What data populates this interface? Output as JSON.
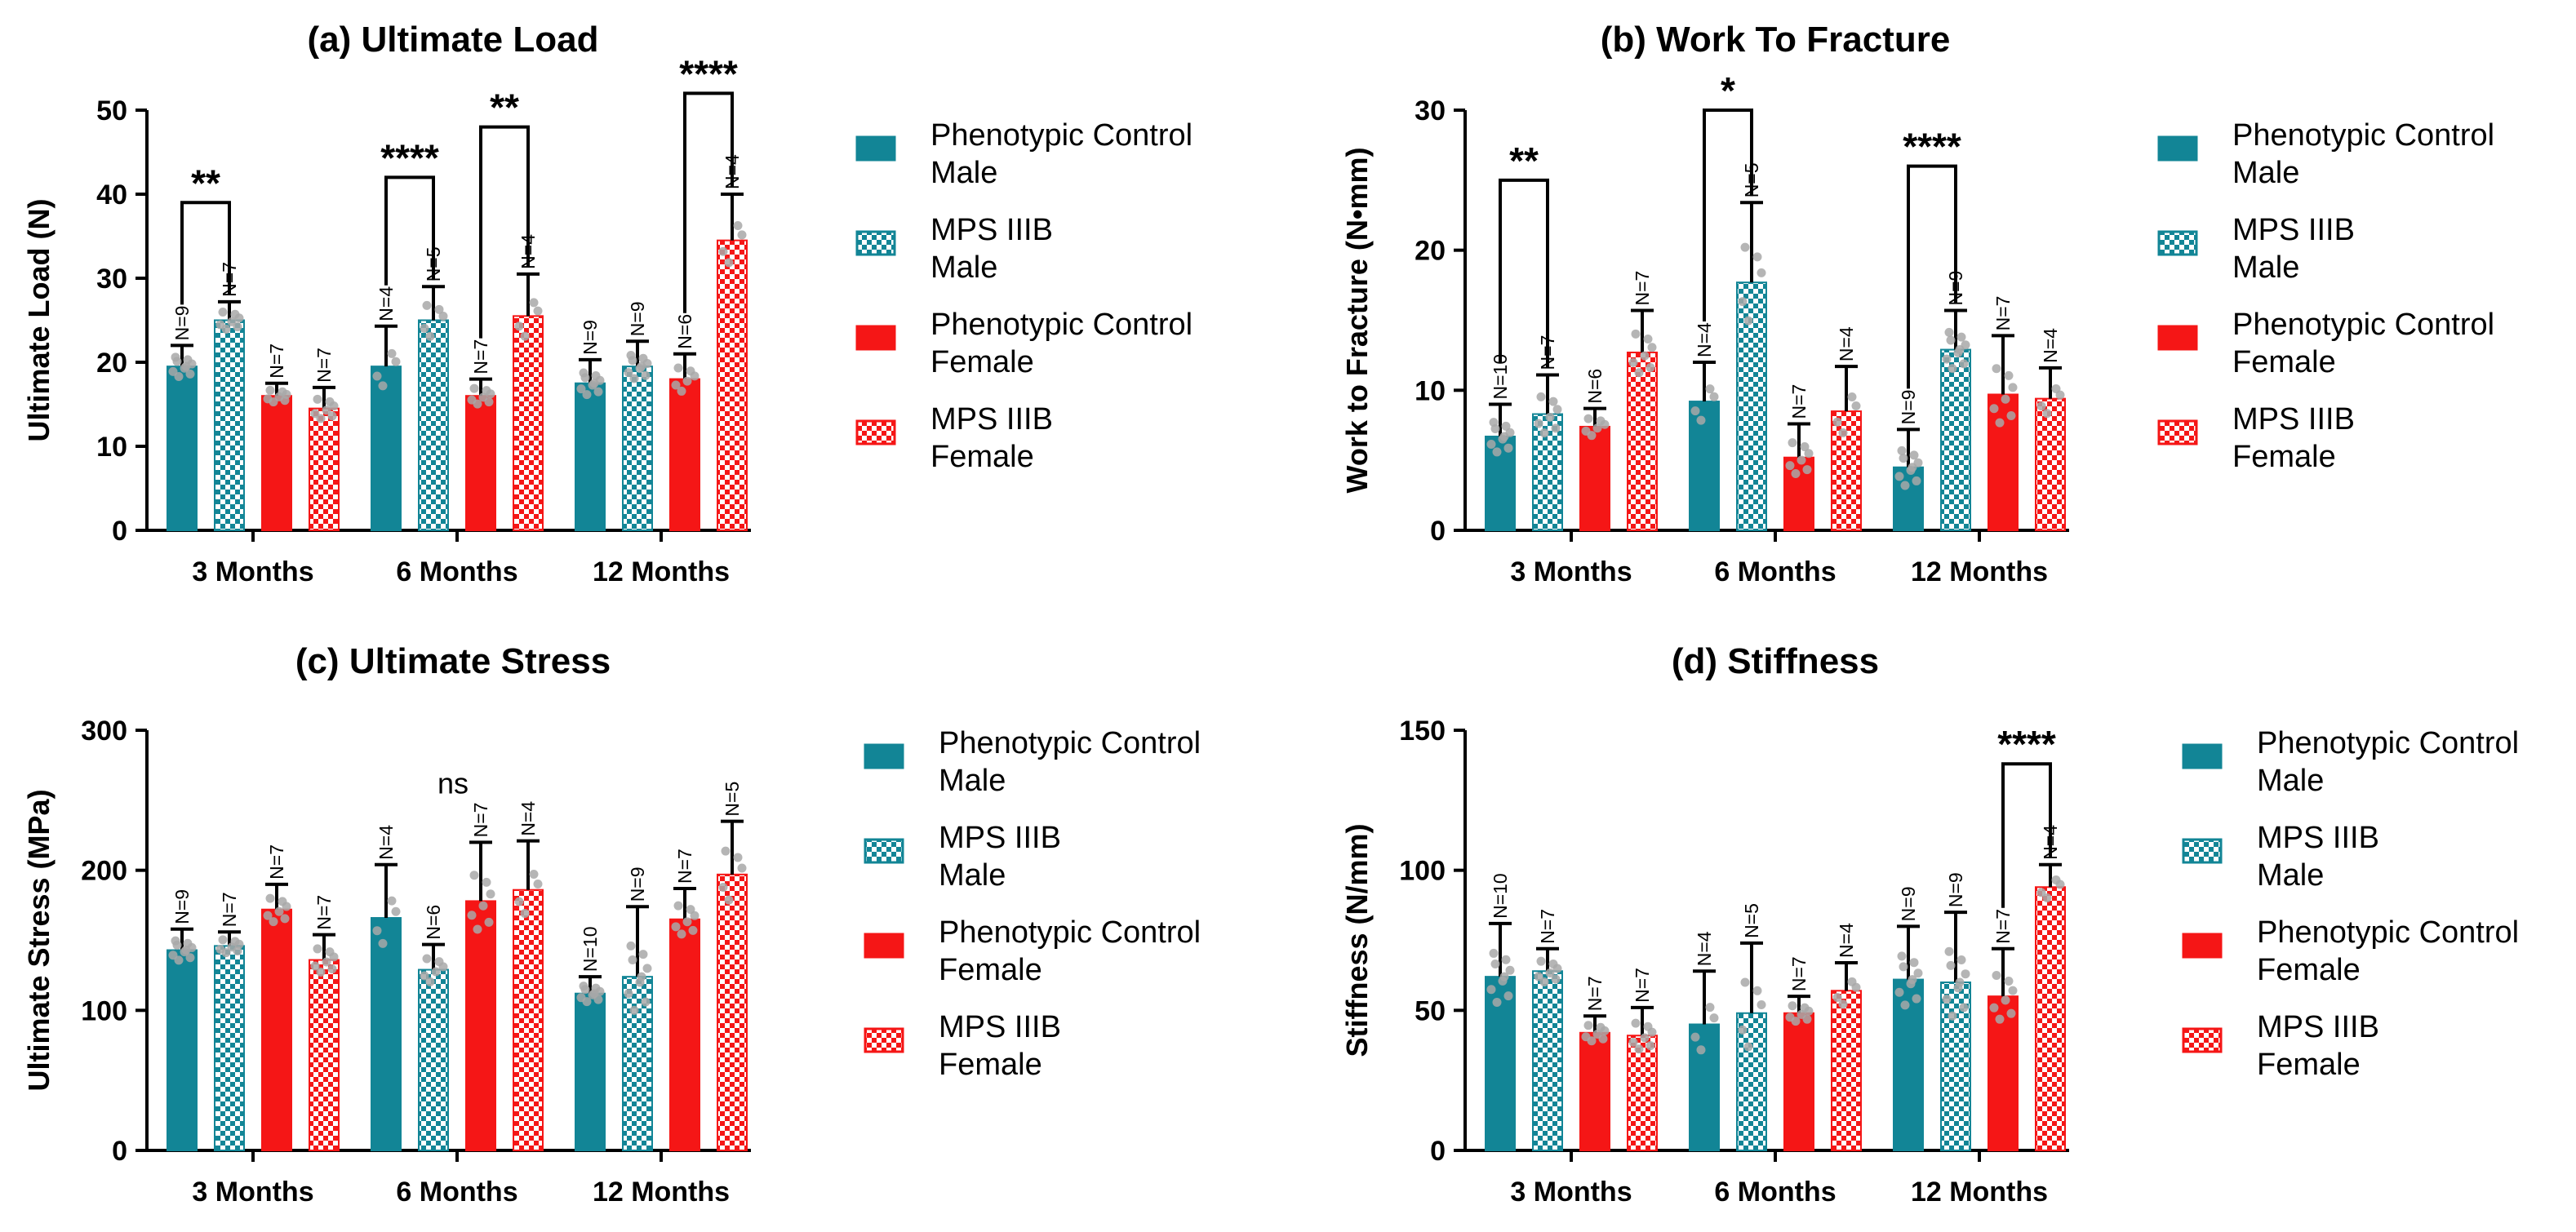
{
  "colors": {
    "teal": "#128596",
    "red": "#f51616",
    "dots": "#a8a8a8"
  },
  "legend": [
    {
      "lines": [
        "Phenotypic Control",
        "Male"
      ],
      "color": "#128596",
      "pattern": "solid"
    },
    {
      "lines": [
        "MPS IIIB",
        "Male"
      ],
      "color": "#128596",
      "pattern": "check"
    },
    {
      "lines": [
        "Phenotypic Control",
        "Female"
      ],
      "color": "#f51616",
      "pattern": "solid"
    },
    {
      "lines": [
        "MPS IIIB",
        "Female"
      ],
      "color": "#f51616",
      "pattern": "check"
    }
  ],
  "chart_data": [
    {
      "type": "bar",
      "title": "(a) Ultimate Load",
      "ylabel": "Ultimate  Load (N)",
      "ylim": [
        0,
        50
      ],
      "yticks": [
        0,
        10,
        20,
        30,
        40,
        50
      ],
      "categories": [
        "3 Months",
        "6 Months",
        "12 Months"
      ],
      "series": [
        {
          "name": "Phenotypic Control Male",
          "values": [
            19.5,
            19.5,
            17.5
          ],
          "errors": [
            2.5,
            4.8,
            2.8
          ],
          "n": [
            "N=9",
            "N=4",
            "N=9"
          ]
        },
        {
          "name": "MPS IIIB Male",
          "values": [
            25,
            25,
            19.5
          ],
          "errors": [
            2.2,
            4,
            3
          ],
          "n": [
            "N=7",
            "N=5",
            "N=9"
          ]
        },
        {
          "name": "Phenotypic Control Female",
          "values": [
            16,
            16,
            18
          ],
          "errors": [
            1.5,
            2,
            3
          ],
          "n": [
            "N=7",
            "N=7",
            "N=6"
          ]
        },
        {
          "name": "MPS IIIB Female",
          "values": [
            14.5,
            25.5,
            34.5
          ],
          "errors": [
            2.5,
            5,
            5.5
          ],
          "n": [
            "N=7",
            "N=4",
            "N=4"
          ]
        }
      ],
      "significance": [
        {
          "group": 0,
          "from": 0,
          "to": 1,
          "label": "**",
          "y": 39
        },
        {
          "group": 1,
          "from": 0,
          "to": 1,
          "label": "****",
          "y": 42
        },
        {
          "group": 1,
          "from": 2,
          "to": 3,
          "label": "**",
          "y": 48
        },
        {
          "group": 2,
          "from": 2,
          "to": 3,
          "label": "****",
          "y": 52
        }
      ],
      "annotation": ""
    },
    {
      "type": "bar",
      "title": "(b) Work To Fracture",
      "ylabel": "Work to Fracture (N•mm)",
      "ylim": [
        0,
        30
      ],
      "yticks": [
        0,
        10,
        20,
        30
      ],
      "categories": [
        "3 Months",
        "6 Months",
        "12 Months"
      ],
      "series": [
        {
          "name": "Phenotypic Control Male",
          "values": [
            6.7,
            9.2,
            4.5
          ],
          "errors": [
            2.3,
            2.8,
            2.7
          ],
          "n": [
            "N=10",
            "N=4",
            "N=9"
          ]
        },
        {
          "name": "MPS IIIB Male",
          "values": [
            8.3,
            17.7,
            12.9
          ],
          "errors": [
            2.8,
            5.7,
            2.8
          ],
          "n": [
            "N=7",
            "N=5",
            "N=9"
          ]
        },
        {
          "name": "Phenotypic Control Female",
          "values": [
            7.4,
            5.2,
            9.7
          ],
          "errors": [
            1.3,
            2.4,
            4.2
          ],
          "n": [
            "N=6",
            "N=7",
            "N=7"
          ]
        },
        {
          "name": "MPS IIIB Female",
          "values": [
            12.7,
            8.5,
            9.4
          ],
          "errors": [
            3,
            3.2,
            2.2
          ],
          "n": [
            "N=7",
            "N=4",
            "N=4"
          ]
        }
      ],
      "significance": [
        {
          "group": 0,
          "from": 0,
          "to": 1,
          "label": "**",
          "y": 25
        },
        {
          "group": 1,
          "from": 0,
          "to": 1,
          "label": "*",
          "y": 30
        },
        {
          "group": 2,
          "from": 0,
          "to": 1,
          "label": "****",
          "y": 26
        }
      ],
      "annotation": ""
    },
    {
      "type": "bar",
      "title": "(c) Ultimate Stress",
      "ylabel": "Ultimate  Stress (MPa)",
      "ylim": [
        0,
        300
      ],
      "yticks": [
        0,
        100,
        200,
        300
      ],
      "categories": [
        "3 Months",
        "6 Months",
        "12 Months"
      ],
      "series": [
        {
          "name": "Phenotypic Control Male",
          "values": [
            143,
            166,
            112
          ],
          "errors": [
            15,
            38,
            12
          ],
          "n": [
            "N=9",
            "N=4",
            "N=10"
          ]
        },
        {
          "name": "MPS IIIB Male",
          "values": [
            146,
            129,
            124
          ],
          "errors": [
            10,
            18,
            50
          ],
          "n": [
            "N=7",
            "N=6",
            "N=9"
          ]
        },
        {
          "name": "Phenotypic Control Female",
          "values": [
            172,
            178,
            165
          ],
          "errors": [
            18,
            42,
            22
          ],
          "n": [
            "N=7",
            "N=7",
            "N=7"
          ]
        },
        {
          "name": "MPS IIIB Female",
          "values": [
            136,
            186,
            197
          ],
          "errors": [
            18,
            35,
            38
          ],
          "n": [
            "N=7",
            "N=4",
            "N=5"
          ]
        }
      ],
      "significance": [],
      "annotation": "ns"
    },
    {
      "type": "bar",
      "title": "(d) Stiffness",
      "ylabel": "Stiffness (N/mm)",
      "ylim": [
        0,
        150
      ],
      "yticks": [
        0,
        50,
        100,
        150
      ],
      "categories": [
        "3 Months",
        "6 Months",
        "12 Months"
      ],
      "series": [
        {
          "name": "Phenotypic Control Male",
          "values": [
            62,
            45,
            61
          ],
          "errors": [
            19,
            19,
            19
          ],
          "n": [
            "N=10",
            "N=4",
            "N=9"
          ]
        },
        {
          "name": "MPS IIIB Male",
          "values": [
            64,
            49,
            60
          ],
          "errors": [
            8,
            25,
            25
          ],
          "n": [
            "N=7",
            "N=5",
            "N=9"
          ]
        },
        {
          "name": "Phenotypic Control Female",
          "values": [
            42,
            49,
            55
          ],
          "errors": [
            6,
            6,
            17
          ],
          "n": [
            "N=7",
            "N=7",
            "N=7"
          ]
        },
        {
          "name": "MPS IIIB Female",
          "values": [
            41,
            57,
            94
          ],
          "errors": [
            10,
            10,
            8
          ],
          "n": [
            "N=7",
            "N=4",
            "N=4"
          ]
        }
      ],
      "significance": [
        {
          "group": 2,
          "from": 2,
          "to": 3,
          "label": "****",
          "y": 138
        }
      ],
      "annotation": ""
    }
  ]
}
